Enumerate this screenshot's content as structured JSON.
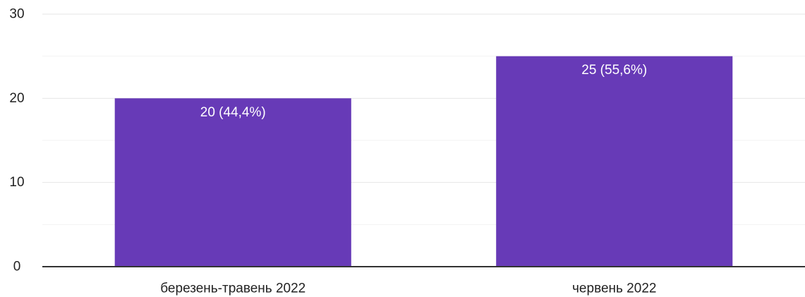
{
  "chart_data": {
    "type": "bar",
    "categories": [
      "березень-травень 2022",
      "червень 2022"
    ],
    "values": [
      20,
      25
    ],
    "data_labels": [
      "20 (44,4%)",
      "25 (55,6%)"
    ],
    "title": "",
    "xlabel": "",
    "ylabel": "",
    "ylim": [
      0,
      30
    ],
    "yticks": [
      0,
      10,
      20,
      30
    ],
    "minor_gridlines": [
      5,
      15,
      25
    ],
    "grid": true,
    "legend": "none",
    "bar_color": "#673ab7"
  }
}
